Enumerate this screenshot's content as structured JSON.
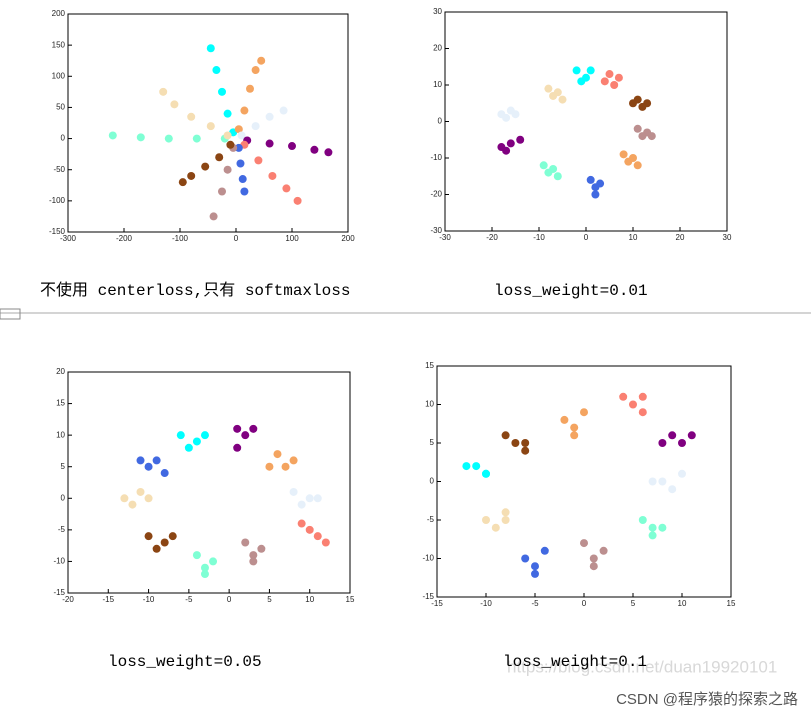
{
  "chart_data": [
    {
      "type": "scatter",
      "caption": "不使用 centerloss,只有 softmaxloss",
      "xlim": [
        -300,
        200
      ],
      "ylim": [
        -150,
        200
      ],
      "xticks": [
        -300,
        -200,
        -100,
        0,
        100,
        200
      ],
      "yticks": [
        -150,
        -100,
        -50,
        0,
        50,
        100,
        150,
        200
      ],
      "series": [
        {
          "color": "#00ffff",
          "x": [
            -5,
            -15,
            -25,
            -35,
            -45
          ],
          "y": [
            10,
            40,
            75,
            110,
            145
          ]
        },
        {
          "color": "#f4a460",
          "x": [
            5,
            15,
            25,
            35,
            45
          ],
          "y": [
            15,
            45,
            80,
            110,
            125
          ]
        },
        {
          "color": "#e6f0fa",
          "x": [
            10,
            35,
            60,
            85
          ],
          "y": [
            5,
            20,
            35,
            45
          ]
        },
        {
          "color": "#800080",
          "x": [
            20,
            60,
            100,
            140,
            165
          ],
          "y": [
            -3,
            -8,
            -12,
            -18,
            -22
          ]
        },
        {
          "color": "#fa8072",
          "x": [
            15,
            40,
            65,
            90,
            110
          ],
          "y": [
            -10,
            -35,
            -60,
            -80,
            -100
          ]
        },
        {
          "color": "#4169e1",
          "x": [
            5,
            8,
            12,
            15
          ],
          "y": [
            -15,
            -40,
            -65,
            -85
          ]
        },
        {
          "color": "#bc8f8f",
          "x": [
            -5,
            -15,
            -25,
            -40
          ],
          "y": [
            -15,
            -50,
            -85,
            -125
          ]
        },
        {
          "color": "#8b4513",
          "x": [
            -10,
            -30,
            -55,
            -80,
            -95
          ],
          "y": [
            -10,
            -30,
            -45,
            -60,
            -70
          ]
        },
        {
          "color": "#7fffd4",
          "x": [
            -20,
            -70,
            -120,
            -170,
            -220
          ],
          "y": [
            0,
            0,
            0,
            2,
            5
          ]
        },
        {
          "color": "#f5deb3",
          "x": [
            -15,
            -45,
            -80,
            -110,
            -130
          ],
          "y": [
            5,
            20,
            35,
            55,
            75
          ]
        }
      ]
    },
    {
      "type": "scatter",
      "caption": "loss_weight=0.01",
      "xlim": [
        -30,
        30
      ],
      "ylim": [
        -30,
        30
      ],
      "xticks": [
        -30,
        -20,
        -10,
        0,
        10,
        20,
        30
      ],
      "yticks": [
        -30,
        -20,
        -10,
        0,
        10,
        20,
        30
      ],
      "series": [
        {
          "color": "#00ffff",
          "x": [
            -2,
            0,
            -1,
            1
          ],
          "y": [
            14,
            12,
            11,
            14
          ]
        },
        {
          "color": "#fa8072",
          "x": [
            5,
            7,
            6,
            4
          ],
          "y": [
            13,
            12,
            10,
            11
          ]
        },
        {
          "color": "#8b4513",
          "x": [
            11,
            13,
            12,
            10
          ],
          "y": [
            6,
            5,
            4,
            5
          ]
        },
        {
          "color": "#bc8f8f",
          "x": [
            11,
            13,
            12,
            14
          ],
          "y": [
            -2,
            -3,
            -4,
            -4
          ]
        },
        {
          "color": "#f4a460",
          "x": [
            8,
            10,
            9,
            11
          ],
          "y": [
            -9,
            -10,
            -11,
            -12
          ]
        },
        {
          "color": "#4169e1",
          "x": [
            1,
            3,
            2,
            2
          ],
          "y": [
            -16,
            -17,
            -18,
            -20
          ]
        },
        {
          "color": "#7fffd4",
          "x": [
            -9,
            -7,
            -8,
            -6
          ],
          "y": [
            -12,
            -13,
            -14,
            -15
          ]
        },
        {
          "color": "#800080",
          "x": [
            -18,
            -16,
            -17,
            -14
          ],
          "y": [
            -7,
            -6,
            -8,
            -5
          ]
        },
        {
          "color": "#e6f0fa",
          "x": [
            -18,
            -16,
            -17,
            -15
          ],
          "y": [
            2,
            3,
            1,
            2
          ]
        },
        {
          "color": "#f5deb3",
          "x": [
            -8,
            -6,
            -7,
            -5
          ],
          "y": [
            9,
            8,
            7,
            6
          ]
        }
      ]
    },
    {
      "type": "scatter",
      "caption": "loss_weight=0.05",
      "xlim": [
        -20,
        15
      ],
      "ylim": [
        -15,
        20
      ],
      "xticks": [
        -20,
        -15,
        -10,
        -5,
        0,
        5,
        10,
        15
      ],
      "yticks": [
        -15,
        -10,
        -5,
        0,
        5,
        10,
        15,
        20
      ],
      "series": [
        {
          "color": "#00ffff",
          "x": [
            -6,
            -4,
            -5,
            -3
          ],
          "y": [
            10,
            9,
            8,
            10
          ]
        },
        {
          "color": "#800080",
          "x": [
            1,
            3,
            2,
            1
          ],
          "y": [
            11,
            11,
            10,
            8
          ]
        },
        {
          "color": "#f4a460",
          "x": [
            6,
            8,
            7,
            5
          ],
          "y": [
            7,
            6,
            5,
            5
          ]
        },
        {
          "color": "#e6f0fa",
          "x": [
            8,
            10,
            9,
            11
          ],
          "y": [
            1,
            0,
            -1,
            0
          ]
        },
        {
          "color": "#fa8072",
          "x": [
            10,
            11,
            12,
            9
          ],
          "y": [
            -5,
            -6,
            -7,
            -4
          ]
        },
        {
          "color": "#bc8f8f",
          "x": [
            2,
            4,
            3,
            3
          ],
          "y": [
            -7,
            -8,
            -9,
            -10
          ]
        },
        {
          "color": "#7fffd4",
          "x": [
            -4,
            -2,
            -3,
            -3
          ],
          "y": [
            -9,
            -10,
            -11,
            -12
          ]
        },
        {
          "color": "#8b4513",
          "x": [
            -10,
            -8,
            -9,
            -7
          ],
          "y": [
            -6,
            -7,
            -8,
            -6
          ]
        },
        {
          "color": "#f5deb3",
          "x": [
            -13,
            -11,
            -12,
            -10
          ],
          "y": [
            0,
            1,
            -1,
            0
          ]
        },
        {
          "color": "#4169e1",
          "x": [
            -11,
            -9,
            -10,
            -8
          ],
          "y": [
            6,
            6,
            5,
            4
          ]
        }
      ]
    },
    {
      "type": "scatter",
      "caption": "loss_weight=0.1",
      "xlim": [
        -15,
        15
      ],
      "ylim": [
        -15,
        15
      ],
      "xticks": [
        -15,
        -10,
        -5,
        0,
        5,
        10,
        15
      ],
      "yticks": [
        -15,
        -10,
        -5,
        0,
        5,
        10,
        15
      ],
      "series": [
        {
          "color": "#f4a460",
          "x": [
            -2,
            0,
            -1,
            -1
          ],
          "y": [
            8,
            9,
            7,
            6
          ]
        },
        {
          "color": "#fa8072",
          "x": [
            4,
            6,
            5,
            6
          ],
          "y": [
            11,
            11,
            10,
            9
          ]
        },
        {
          "color": "#800080",
          "x": [
            9,
            11,
            10,
            8
          ],
          "y": [
            6,
            6,
            5,
            5
          ]
        },
        {
          "color": "#e6f0fa",
          "x": [
            8,
            10,
            9,
            7
          ],
          "y": [
            0,
            1,
            -1,
            0
          ]
        },
        {
          "color": "#7fffd4",
          "x": [
            6,
            8,
            7,
            7
          ],
          "y": [
            -5,
            -6,
            -7,
            -6
          ]
        },
        {
          "color": "#bc8f8f",
          "x": [
            0,
            2,
            1,
            1
          ],
          "y": [
            -8,
            -9,
            -10,
            -11
          ]
        },
        {
          "color": "#4169e1",
          "x": [
            -6,
            -4,
            -5,
            -5
          ],
          "y": [
            -10,
            -9,
            -11,
            -12
          ]
        },
        {
          "color": "#f5deb3",
          "x": [
            -10,
            -8,
            -9,
            -8
          ],
          "y": [
            -5,
            -4,
            -6,
            -5
          ]
        },
        {
          "color": "#00ffff",
          "x": [
            -12,
            -10,
            -11,
            -10
          ],
          "y": [
            2,
            1,
            2,
            1
          ]
        },
        {
          "color": "#8b4513",
          "x": [
            -8,
            -6,
            -7,
            -6
          ],
          "y": [
            6,
            5,
            5,
            4
          ]
        }
      ]
    }
  ],
  "watermark": "https://blog.csdn.net/duan19920101",
  "footer": "CSDN @程序猿的探索之路"
}
